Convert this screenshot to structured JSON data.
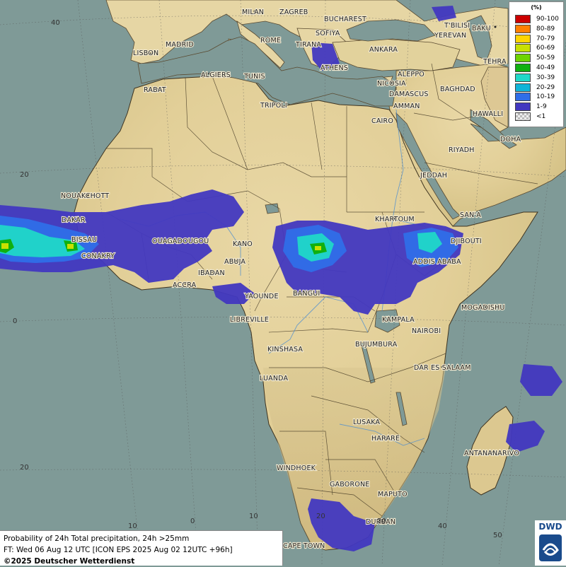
{
  "map": {
    "cities": [
      "MILAN",
      "ZAGREB",
      "BUCHAREST",
      "ROME",
      "SOFIYA",
      "T'BILISI",
      "BAKU",
      "YEREVAN",
      "MADRID",
      "TIRANA",
      "ANKARA",
      "TEHRA",
      "LISBON",
      "ATHENS",
      "ALGIERS",
      "TUNIS",
      "ALEPPO",
      "RABAT",
      "NICOSIA",
      "BAGHDAD",
      "TRIPOLI",
      "DAMASCUS",
      "AMMAN",
      "HAWALLI",
      "CAIRO",
      "DOHA",
      "RIYADH",
      "JEDDAH",
      "NOUAKCHOTT",
      "SAN'A",
      "KHARTOUM",
      "DAKAR",
      "DJIBOUTI",
      "BISSAU",
      "OUAGADOUGOU",
      "KANO",
      "CONAKRY",
      "ABUJA",
      "ADDIS ABABA",
      "IBADAN",
      "ACCRA",
      "YAOUNDE",
      "BANGUI",
      "MOGADISHU",
      "LIBREVILLE",
      "KAMPALA",
      "NAIROBI",
      "KINSHASA",
      "BUJUMBURA",
      "DAR ES SALAAM",
      "LUANDA",
      "LUSAKA",
      "HARARE",
      "ANTANANARIVO",
      "WINDHOEK",
      "GABORONE",
      "MAPUTO",
      "DURBAN",
      "CAPE TOWN"
    ],
    "lat_labels": [
      "40",
      "20",
      "0",
      "20"
    ],
    "lon_labels": [
      "10",
      "0",
      "10",
      "20",
      "30",
      "40",
      "50"
    ]
  },
  "legend": {
    "unit": "(%)",
    "classes": [
      {
        "label": "90-100",
        "color": "#cc0000"
      },
      {
        "label": "80-89",
        "color": "#ff7f00"
      },
      {
        "label": "70-79",
        "color": "#ffd400"
      },
      {
        "label": "60-69",
        "color": "#c8e000"
      },
      {
        "label": "50-59",
        "color": "#6ed400"
      },
      {
        "label": "40-49",
        "color": "#10b010"
      },
      {
        "label": "30-39",
        "color": "#20d8c8"
      },
      {
        "label": "20-29",
        "color": "#10b4d8"
      },
      {
        "label": "10-19",
        "color": "#2f6ee8"
      },
      {
        "label": "1-9",
        "color": "#4238c0"
      },
      {
        "label": "<1",
        "color": "#cccccc"
      }
    ]
  },
  "info": {
    "line1": "Probability of 24h Total precipitation, 24h >25mm",
    "line2": "FT: Wed 06 Aug 12 UTC [ICON EPS 2025 Aug 02 12UTC +96h]",
    "line3": "©2025 Deutscher Wetterdienst"
  },
  "logo": {
    "text": "DWD"
  }
}
